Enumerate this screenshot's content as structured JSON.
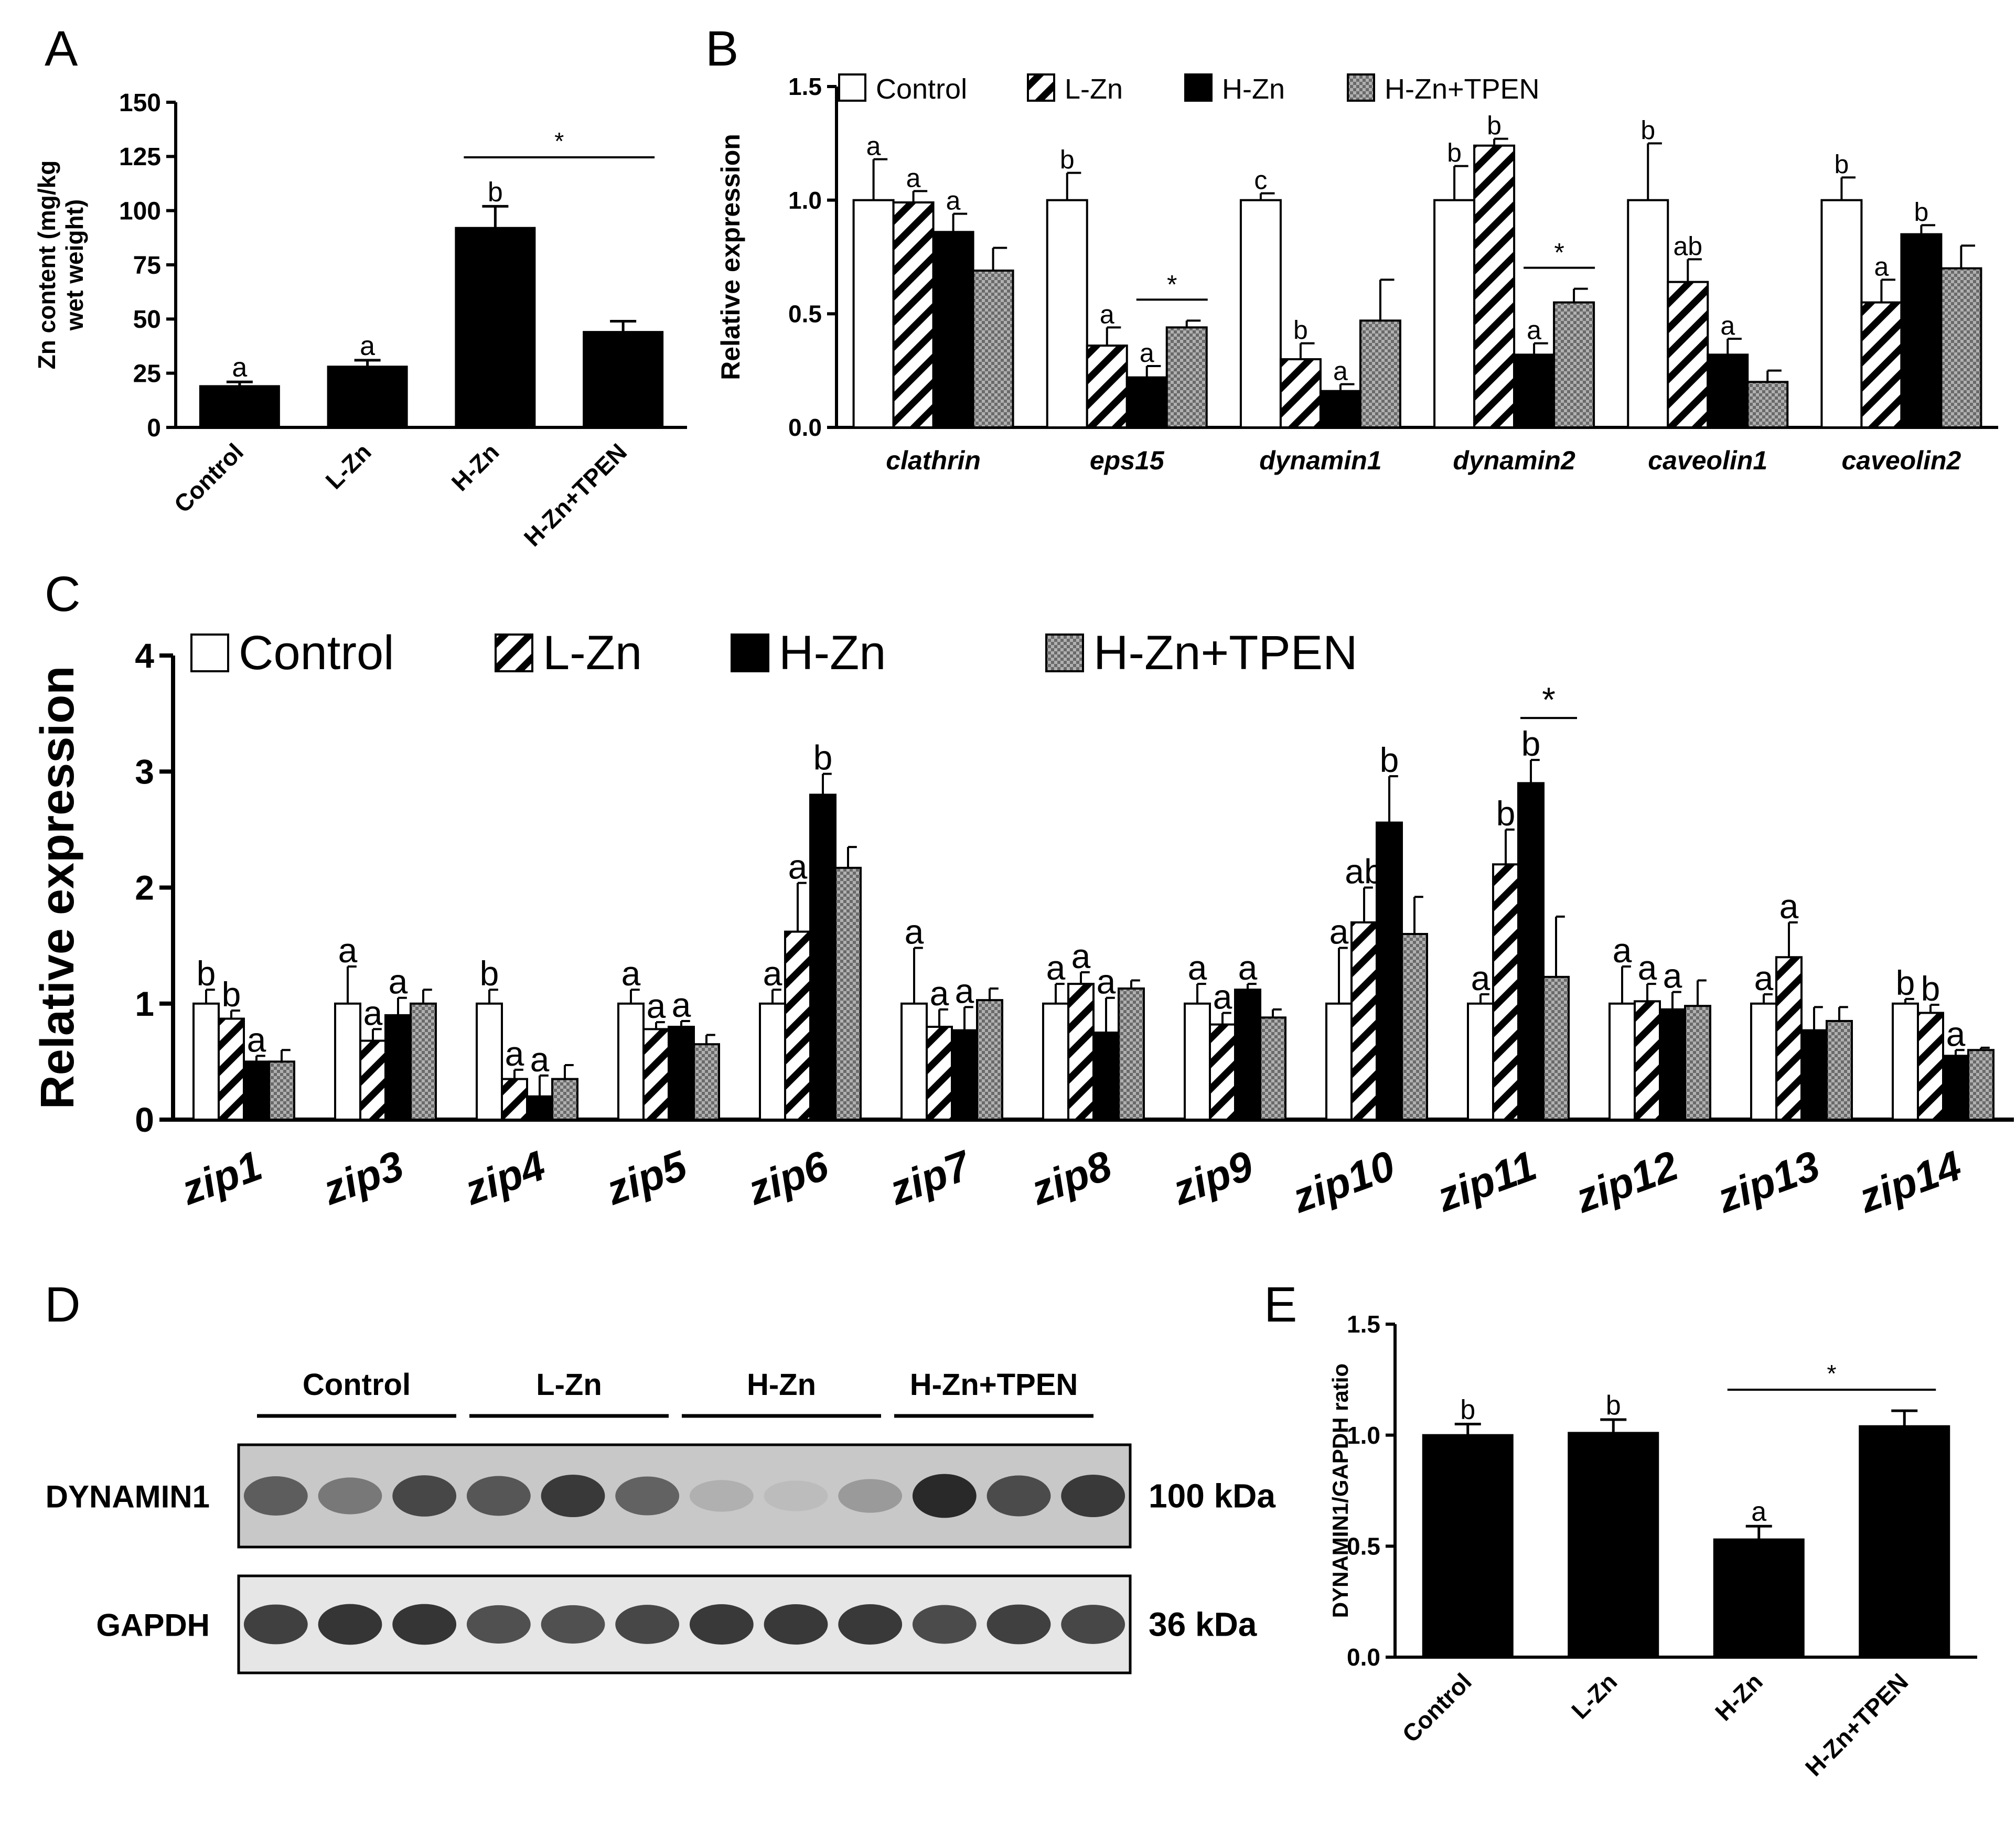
{
  "legend_labels": [
    "Control",
    "L-Zn",
    "H-Zn",
    "H-Zn+TPEN"
  ],
  "chart_data": [
    {
      "panel": "A",
      "type": "bar",
      "ylabel_lines": [
        "Zn content (mg/kg",
        "wet weight)"
      ],
      "categories": [
        "Control",
        "L-Zn",
        "H-Zn",
        "H-Zn+TPEN"
      ],
      "values": [
        19,
        28,
        92,
        44
      ],
      "errors": [
        2,
        3,
        10,
        5
      ],
      "letters": [
        "a",
        "a",
        "b",
        ""
      ],
      "ylim": [
        0,
        150
      ],
      "ticks": [
        "0",
        "25",
        "50",
        "75",
        "100",
        "125",
        "150"
      ],
      "significance": [
        {
          "from": 2,
          "to": 3,
          "label": "*"
        }
      ],
      "colors": [
        "#000000",
        "#000000",
        "#000000",
        "#000000"
      ]
    },
    {
      "panel": "B",
      "type": "bar",
      "ylabel": "Relative expression",
      "categories": [
        "clathrin",
        "eps15",
        "dynamin1",
        "dynamin2",
        "caveolin1",
        "caveolin2"
      ],
      "ylim": [
        0,
        1.5
      ],
      "ticks": [
        "0.0",
        "0.5",
        "1.0",
        "1.5"
      ],
      "series": [
        {
          "name": "Control",
          "values": [
            1.0,
            1.0,
            1.0,
            1.0,
            1.0,
            1.0
          ],
          "errors": [
            0.18,
            0.12,
            0.03,
            0.15,
            0.25,
            0.1
          ],
          "letters": [
            "a",
            "b",
            "c",
            "b",
            "b",
            "b"
          ]
        },
        {
          "name": "L-Zn",
          "values": [
            0.99,
            0.36,
            0.3,
            1.24,
            0.64,
            0.55
          ],
          "errors": [
            0.05,
            0.08,
            0.07,
            0.03,
            0.1,
            0.1
          ],
          "letters": [
            "a",
            "a",
            "b",
            "b",
            "ab",
            "a"
          ]
        },
        {
          "name": "H-Zn",
          "values": [
            0.86,
            0.22,
            0.16,
            0.32,
            0.32,
            0.85
          ],
          "errors": [
            0.08,
            0.05,
            0.03,
            0.05,
            0.07,
            0.04
          ],
          "letters": [
            "a",
            "a",
            "a",
            "a",
            "a",
            "b"
          ]
        },
        {
          "name": "H-Zn+TPEN",
          "values": [
            0.69,
            0.44,
            0.47,
            0.55,
            0.2,
            0.7
          ],
          "errors": [
            0.1,
            0.03,
            0.18,
            0.06,
            0.05,
            0.1
          ],
          "letters": [
            "",
            "",
            "",
            "",
            "",
            ""
          ]
        }
      ],
      "significance": [
        {
          "group": 1,
          "from": 2,
          "to": 3,
          "label": "*"
        },
        {
          "group": 3,
          "from": 2,
          "to": 3,
          "label": "*"
        }
      ]
    },
    {
      "panel": "C",
      "type": "bar",
      "ylabel": "Relative expression",
      "categories": [
        "zip1",
        "zip3",
        "zip4",
        "zip5",
        "zip6",
        "zip7",
        "zip8",
        "zip9",
        "zip10",
        "zip11",
        "zip12",
        "zip13",
        "zip14"
      ],
      "ylim": [
        0,
        4
      ],
      "ticks": [
        "0",
        "1",
        "2",
        "3",
        "4"
      ],
      "series": [
        {
          "name": "Control",
          "values": [
            1.0,
            1.0,
            1.0,
            1.0,
            1.0,
            1.0,
            1.0,
            1.0,
            1.0,
            1.0,
            1.0,
            1.0,
            1.0
          ],
          "errors": [
            0.12,
            0.32,
            0.12,
            0.12,
            0.12,
            0.48,
            0.17,
            0.17,
            0.48,
            0.08,
            0.32,
            0.08,
            0.04
          ],
          "letters": [
            "b",
            "a",
            "b",
            "a",
            "a",
            "a",
            "a",
            "a",
            "a",
            "a",
            "a",
            "a",
            "b"
          ]
        },
        {
          "name": "L-Zn",
          "values": [
            0.87,
            0.68,
            0.35,
            0.78,
            1.62,
            0.8,
            1.17,
            0.82,
            1.7,
            2.2,
            1.02,
            1.4,
            0.92
          ],
          "errors": [
            0.07,
            0.1,
            0.08,
            0.06,
            0.42,
            0.15,
            0.1,
            0.1,
            0.3,
            0.3,
            0.15,
            0.3,
            0.07
          ],
          "letters": [
            "b",
            "a",
            "a",
            "a",
            "a",
            "a",
            "a",
            "a",
            "ab",
            "b",
            "a",
            "a",
            "b"
          ]
        },
        {
          "name": "H-Zn",
          "values": [
            0.5,
            0.9,
            0.2,
            0.8,
            2.8,
            0.77,
            0.75,
            1.12,
            2.56,
            2.9,
            0.95,
            0.77,
            0.55
          ],
          "errors": [
            0.05,
            0.15,
            0.18,
            0.05,
            0.18,
            0.2,
            0.3,
            0.05,
            0.4,
            0.2,
            0.15,
            0.2,
            0.05
          ],
          "letters": [
            "a",
            "a",
            "a",
            "a",
            "b",
            "a",
            "a",
            "a",
            "b",
            "b",
            "a",
            "",
            "a"
          ]
        },
        {
          "name": "H-Zn+TPEN",
          "values": [
            0.5,
            1.0,
            0.35,
            0.65,
            2.17,
            1.03,
            1.13,
            0.88,
            1.6,
            1.23,
            0.98,
            0.85,
            0.6
          ],
          "errors": [
            0.1,
            0.12,
            0.12,
            0.08,
            0.18,
            0.1,
            0.07,
            0.07,
            0.32,
            0.52,
            0.22,
            0.12,
            0.02
          ],
          "letters": [
            "",
            "",
            "",
            "",
            "",
            "",
            "",
            "",
            "",
            "",
            "",
            "",
            ""
          ]
        }
      ],
      "significance": [
        {
          "group": 9,
          "from": 2,
          "to": 3,
          "label": "*"
        }
      ]
    },
    {
      "panel": "E",
      "type": "bar",
      "ylabel": "DYNAMIN1/GAPDH ratio",
      "categories": [
        "Control",
        "L-Zn",
        "H-Zn",
        "H-Zn+TPEN"
      ],
      "values": [
        1.0,
        1.01,
        0.53,
        1.04
      ],
      "errors": [
        0.05,
        0.06,
        0.06,
        0.07
      ],
      "letters": [
        "b",
        "b",
        "a",
        ""
      ],
      "ylim": [
        0,
        1.5
      ],
      "ticks": [
        "0.0",
        "0.5",
        "1.0",
        "1.5"
      ],
      "significance": [
        {
          "from": 2,
          "to": 3,
          "label": "*"
        }
      ],
      "colors": [
        "#000000",
        "#000000",
        "#000000",
        "#000000"
      ]
    }
  ],
  "blot": {
    "panel": "D",
    "groups": [
      "Control",
      "L-Zn",
      "H-Zn",
      "H-Zn+TPEN"
    ],
    "rows": [
      {
        "label": "DYNAMIN1",
        "size": "100 kDa",
        "intensities": [
          0.72,
          0.6,
          0.82,
          0.75,
          0.88,
          0.7,
          0.35,
          0.3,
          0.45,
          0.95,
          0.8,
          0.88
        ]
      },
      {
        "label": "GAPDH",
        "size": "36 kDa",
        "intensities": [
          0.85,
          0.9,
          0.9,
          0.78,
          0.78,
          0.82,
          0.88,
          0.88,
          0.88,
          0.8,
          0.85,
          0.82
        ]
      }
    ]
  }
}
